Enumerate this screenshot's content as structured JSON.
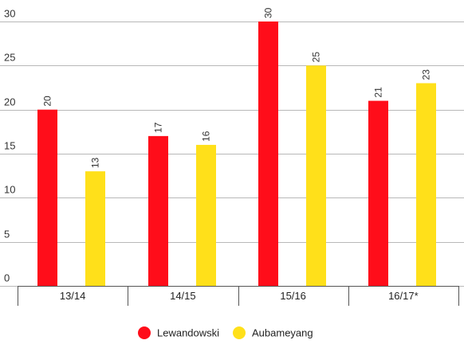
{
  "chart_data": {
    "type": "bar",
    "categories": [
      "13/14",
      "14/15",
      "15/16",
      "16/17*"
    ],
    "series": [
      {
        "name": "Lewandowski",
        "color": "#ff0d1a",
        "values": [
          20,
          17,
          30,
          21
        ]
      },
      {
        "name": "Aubameyang",
        "color": "#ffe01a",
        "values": [
          13,
          16,
          25,
          23
        ]
      }
    ],
    "ylim": [
      0,
      30
    ],
    "yticks": [
      0,
      5,
      10,
      15,
      20,
      25,
      30
    ],
    "grid": true,
    "legend": "bottom-center",
    "data_labels": true,
    "title": "",
    "xlabel": "",
    "ylabel": ""
  }
}
